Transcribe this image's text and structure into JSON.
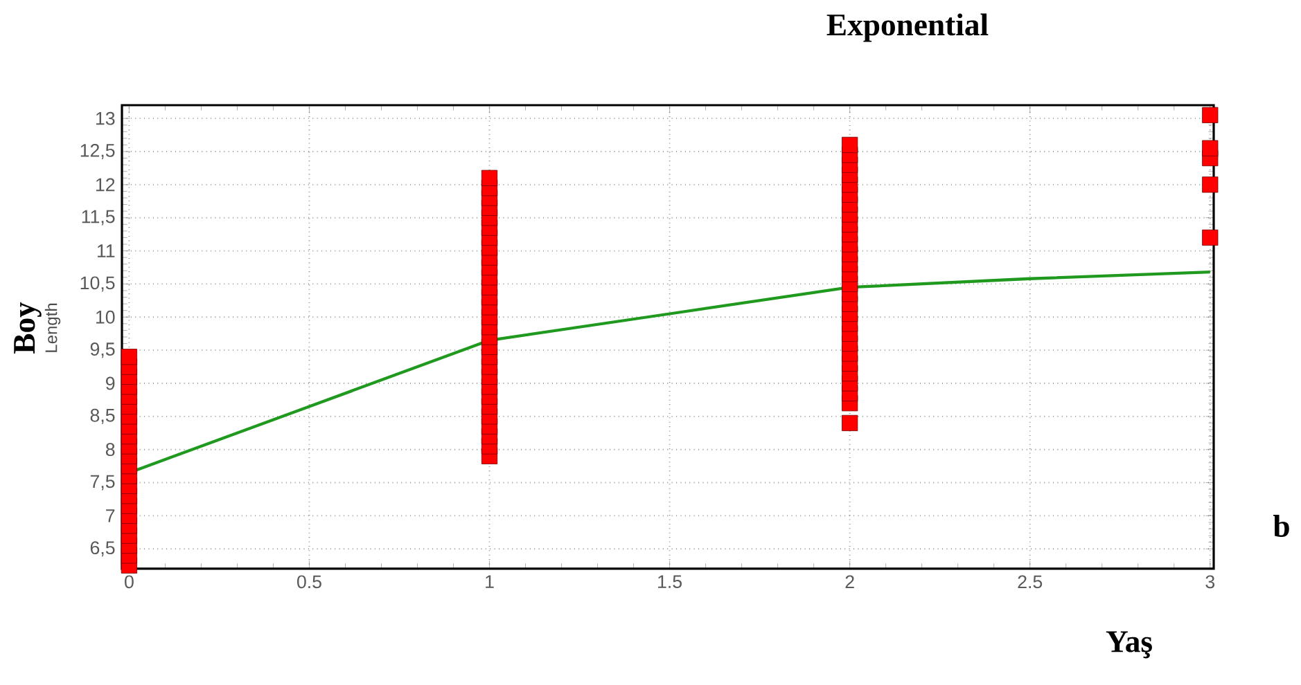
{
  "chart_data": {
    "type": "scatter",
    "title": "Exponential",
    "xlabel": "Yaş",
    "ylabel": "Boy",
    "annotations": [
      "Length",
      "b"
    ],
    "xlim": [
      -0.02,
      3.01
    ],
    "ylim": [
      6.2,
      13.2
    ],
    "xticks": [
      0,
      {
        "value": 0.5,
        "label": "0.5"
      },
      1,
      {
        "value": 1.5,
        "label": "1.5"
      },
      2,
      {
        "value": 2.5,
        "label": "2.5"
      },
      3
    ],
    "yticks": [
      {
        "value": 6.5,
        "label": "6,5"
      },
      7,
      {
        "value": 7.5,
        "label": "7,5"
      },
      8,
      {
        "value": 8.5,
        "label": "8,5"
      },
      9,
      {
        "value": 9.5,
        "label": "9,5"
      },
      10,
      {
        "value": 10.5,
        "label": "10,5"
      },
      11,
      {
        "value": 11.5,
        "label": "11,5"
      },
      12,
      {
        "value": 12.5,
        "label": "12,5"
      },
      13
    ],
    "grid": true,
    "series": [
      {
        "color": "#ff0000",
        "marker": "square",
        "x": [
          0,
          0,
          0,
          0,
          0,
          0,
          0,
          0,
          0,
          0,
          0,
          0,
          0,
          0,
          0,
          0,
          0,
          0,
          0,
          0,
          0,
          0,
          1,
          1,
          1,
          1,
          1,
          1,
          1,
          1,
          1,
          1,
          1,
          1,
          1,
          1,
          1,
          1,
          1,
          1,
          1,
          1,
          1,
          1,
          1,
          1,
          1,
          1,
          1,
          1,
          1,
          2,
          2,
          2,
          2,
          2,
          2,
          2,
          2,
          2,
          2,
          2,
          2,
          2,
          2,
          2,
          2,
          2,
          2,
          2,
          2,
          2,
          2,
          2,
          2,
          2,
          2,
          2,
          2,
          3,
          3,
          3,
          3,
          3
        ],
        "values": [
          6.25,
          6.4,
          6.55,
          6.7,
          6.85,
          7.0,
          7.15,
          7.3,
          7.45,
          7.6,
          7.75,
          7.9,
          8.05,
          8.2,
          8.35,
          8.5,
          8.65,
          8.8,
          8.95,
          9.1,
          9.25,
          9.4,
          7.9,
          8.05,
          8.2,
          8.35,
          8.5,
          8.65,
          8.8,
          8.95,
          9.1,
          9.25,
          9.4,
          9.55,
          9.7,
          9.85,
          10.0,
          10.15,
          10.3,
          10.45,
          10.6,
          10.75,
          10.9,
          11.05,
          11.2,
          11.35,
          11.5,
          11.65,
          11.8,
          11.95,
          12.1,
          8.4,
          8.7,
          8.85,
          9.0,
          9.15,
          9.3,
          9.45,
          9.6,
          9.75,
          9.9,
          10.05,
          10.2,
          10.35,
          10.5,
          10.65,
          10.8,
          10.95,
          11.1,
          11.25,
          11.4,
          11.55,
          11.7,
          11.85,
          12.0,
          12.15,
          12.3,
          12.45,
          12.6,
          11.2,
          12.0,
          12.4,
          12.55,
          13.05
        ]
      },
      {
        "type": "line",
        "color": "#1f9a1f",
        "line_style": "solid",
        "x": [
          0,
          0.5,
          1,
          1.5,
          2,
          2.5,
          3
        ],
        "values": [
          7.65,
          8.65,
          9.65,
          10.05,
          10.45,
          10.58,
          10.68
        ]
      }
    ]
  }
}
